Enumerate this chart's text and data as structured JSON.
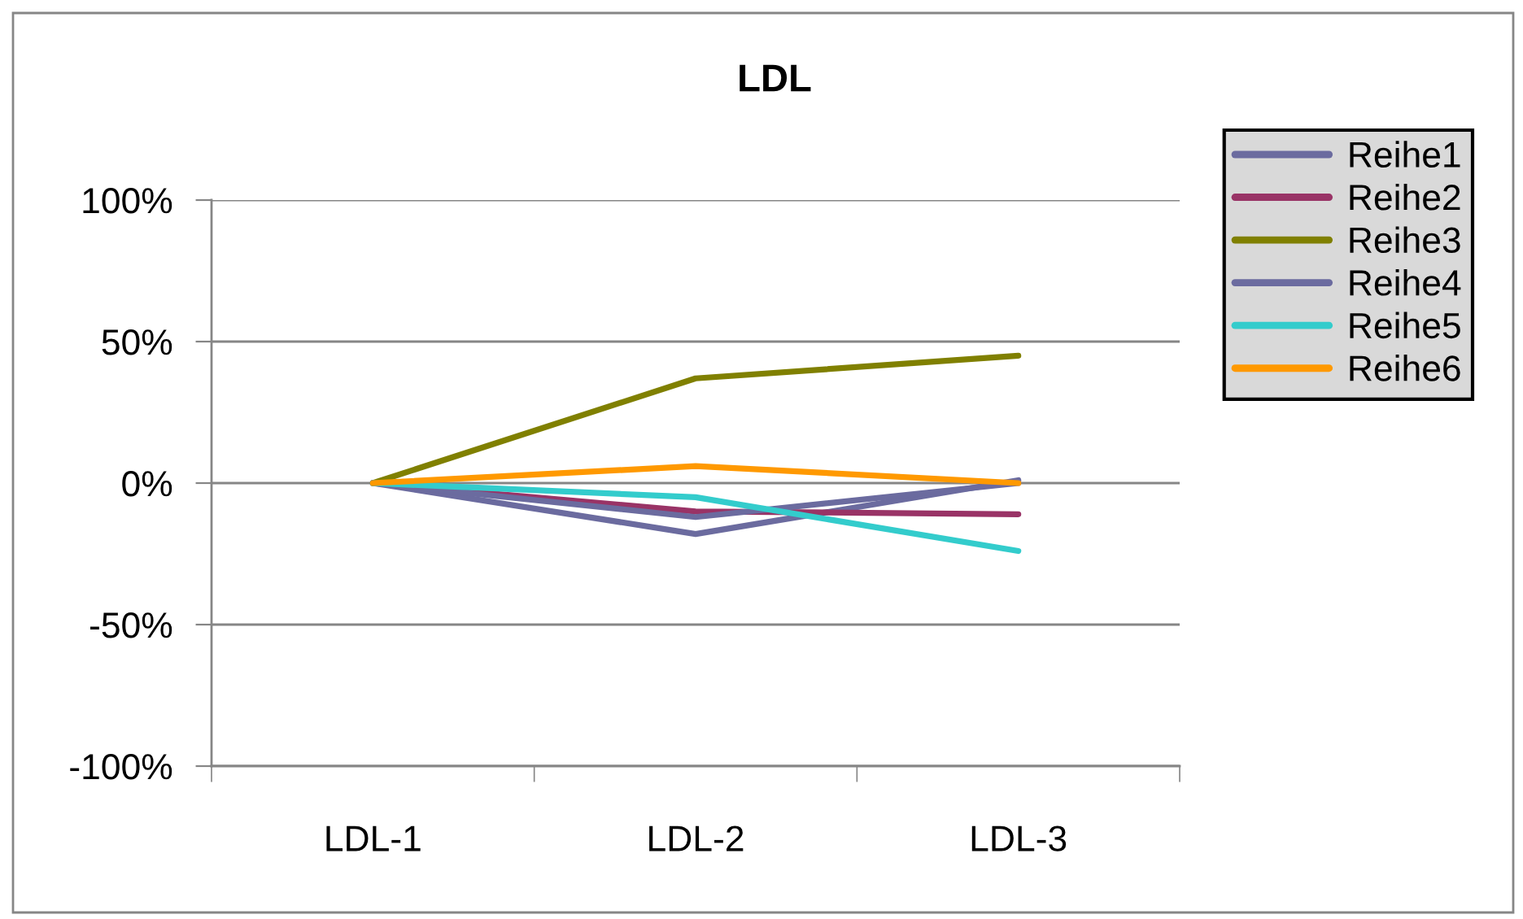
{
  "chart_data": {
    "type": "line",
    "title": "LDL",
    "categories": [
      "LDL-1",
      "LDL-2",
      "LDL-3"
    ],
    "series": [
      {
        "name": "Reihe1",
        "color": "#6b6b9f",
        "values": [
          0,
          -18,
          1
        ]
      },
      {
        "name": "Reihe2",
        "color": "#993366",
        "values": [
          0,
          -10,
          -11
        ]
      },
      {
        "name": "Reihe3",
        "color": "#808000",
        "values": [
          0,
          37,
          45
        ]
      },
      {
        "name": "Reihe4",
        "color": "#6b6b9f",
        "values": [
          0,
          -12,
          0
        ]
      },
      {
        "name": "Reihe5",
        "color": "#33cccc",
        "values": [
          0,
          -5,
          -24
        ]
      },
      {
        "name": "Reihe6",
        "color": "#ff9900",
        "values": [
          0,
          6,
          0
        ]
      }
    ],
    "ylim": [
      -100,
      100
    ],
    "yticks": [
      {
        "value": -100,
        "label": "-100%"
      },
      {
        "value": -50,
        "label": "-50%"
      },
      {
        "value": 0,
        "label": "0%"
      },
      {
        "value": 50,
        "label": "50%"
      },
      {
        "value": 100,
        "label": "100%"
      }
    ],
    "grid": "y",
    "legend": "top right",
    "marker": "none",
    "line_style": "solid"
  }
}
